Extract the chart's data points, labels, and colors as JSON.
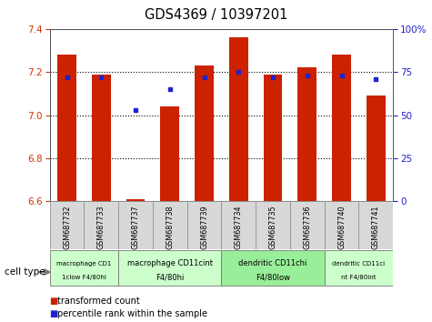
{
  "title": "GDS4369 / 10397201",
  "samples": [
    "GSM687732",
    "GSM687733",
    "GSM687737",
    "GSM687738",
    "GSM687739",
    "GSM687734",
    "GSM687735",
    "GSM687736",
    "GSM687740",
    "GSM687741"
  ],
  "transformed_count": [
    7.28,
    7.19,
    6.61,
    7.04,
    7.23,
    7.36,
    7.19,
    7.22,
    7.28,
    7.09
  ],
  "percentile_rank": [
    72,
    72,
    53,
    65,
    72,
    75,
    72,
    73,
    73,
    71
  ],
  "ylim_left": [
    6.6,
    7.4
  ],
  "ylim_right": [
    0,
    100
  ],
  "yticks_left": [
    6.6,
    6.8,
    7.0,
    7.2,
    7.4
  ],
  "yticks_right": [
    0,
    25,
    50,
    75,
    100
  ],
  "ytick_labels_right": [
    "0",
    "25",
    "50",
    "75",
    "100%"
  ],
  "bar_color": "#cc2200",
  "dot_color": "#2222cc",
  "groups_info": [
    {
      "start": 0,
      "end": 1,
      "label1": "macrophage CD1",
      "label2": "1clow F4/80hi",
      "color": "#ccffcc"
    },
    {
      "start": 2,
      "end": 4,
      "label1": "macrophage CD11cint",
      "label2": "F4/80hi",
      "color": "#ccffcc"
    },
    {
      "start": 5,
      "end": 7,
      "label1": "dendritic CD11chi",
      "label2": "F4/80low",
      "color": "#99ee99"
    },
    {
      "start": 8,
      "end": 9,
      "label1": "dendritic CD11ci",
      "label2": "nt F4/80int",
      "color": "#ccffcc"
    }
  ],
  "legend_red_label": "transformed count",
  "legend_blue_label": "percentile rank within the sample",
  "cell_type_label": "cell type"
}
